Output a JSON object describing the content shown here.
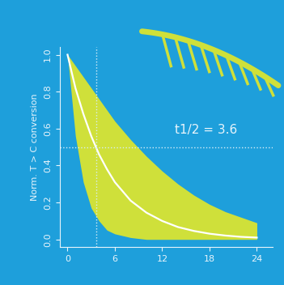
{
  "chart_data": {
    "type": "line",
    "y_label": "Norm. T > C conversion",
    "x": [
      0,
      1,
      2,
      3,
      4,
      5,
      6,
      8,
      10,
      12,
      14,
      16,
      18,
      20,
      22,
      24
    ],
    "series": [
      {
        "color": "#ffffff",
        "values": [
          1.0,
          0.82,
          0.68,
          0.56,
          0.46,
          0.38,
          0.31,
          0.21,
          0.145,
          0.1,
          0.067,
          0.046,
          0.031,
          0.021,
          0.014,
          0.01
        ]
      }
    ],
    "band": {
      "color": "#cfe03a",
      "lower": [
        1.0,
        0.56,
        0.31,
        0.17,
        0.1,
        0.05,
        0.03,
        0.01,
        0.0,
        0.0,
        0.0,
        0.0,
        0.0,
        0.0,
        0.0,
        0.0
      ],
      "upper": [
        1.0,
        0.94,
        0.88,
        0.82,
        0.76,
        0.7,
        0.64,
        0.54,
        0.45,
        0.37,
        0.3,
        0.24,
        0.19,
        0.15,
        0.12,
        0.09
      ]
    },
    "reference_lines": {
      "x": 3.6,
      "y": 0.5
    },
    "annotation": "t1/2 = 3.6",
    "xlim": [
      -1,
      26
    ],
    "ylim": [
      -0.04,
      1.04
    ],
    "xticks": [
      0,
      6,
      12,
      18,
      24
    ],
    "yticks": [
      0.0,
      0.2,
      0.4,
      0.6,
      0.8,
      1.0
    ],
    "grid": false
  }
}
